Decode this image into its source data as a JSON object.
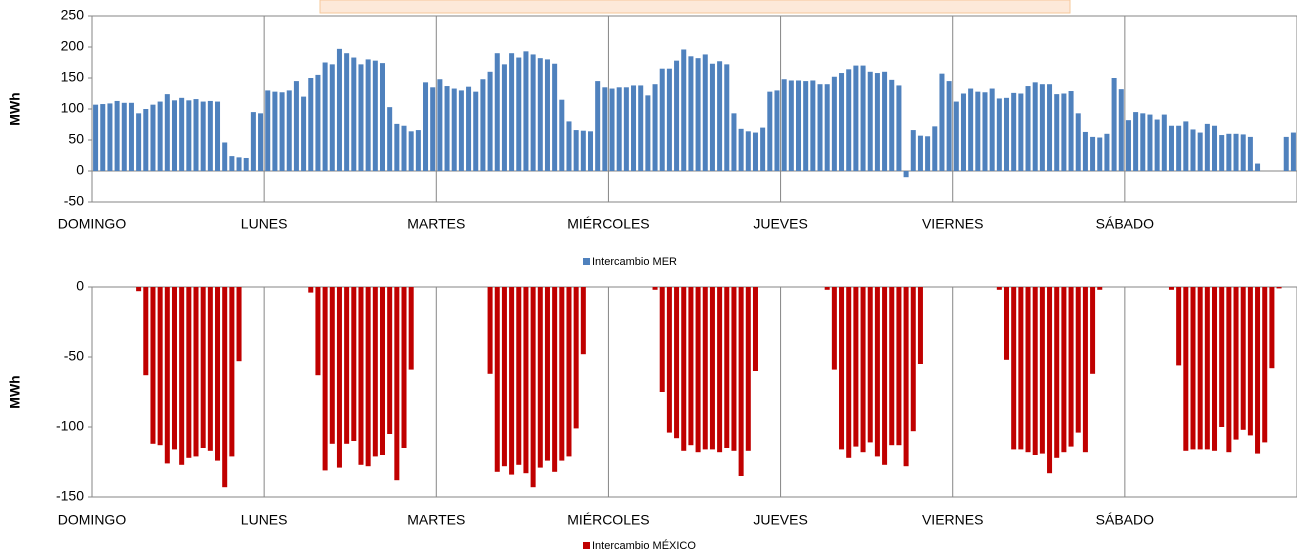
{
  "chart_data": [
    {
      "type": "bar",
      "ylabel": "MWh",
      "categories": [
        "DOMINGO",
        null,
        null,
        null,
        null,
        null,
        null,
        null,
        null,
        null,
        null,
        null,
        null,
        null,
        null,
        null,
        null,
        null,
        null,
        null,
        null,
        null,
        null,
        null,
        "LUNES",
        null,
        null,
        null,
        null,
        null,
        null,
        null,
        null,
        null,
        null,
        null,
        null,
        null,
        null,
        null,
        null,
        null,
        null,
        null,
        null,
        null,
        null,
        null,
        "MARTES",
        null,
        null,
        null,
        null,
        null,
        null,
        null,
        null,
        null,
        null,
        null,
        null,
        null,
        null,
        null,
        null,
        null,
        null,
        null,
        null,
        null,
        null,
        null,
        "MIÉRCOLES",
        null,
        null,
        null,
        null,
        null,
        null,
        null,
        null,
        null,
        null,
        null,
        null,
        null,
        null,
        null,
        null,
        null,
        null,
        null,
        null,
        null,
        null,
        null,
        "JUEVES",
        null,
        null,
        null,
        null,
        null,
        null,
        null,
        null,
        null,
        null,
        null,
        null,
        null,
        null,
        null,
        null,
        null,
        null,
        null,
        null,
        null,
        null,
        null,
        "VIERNES",
        null,
        null,
        null,
        null,
        null,
        null,
        null,
        null,
        null,
        null,
        null,
        null,
        null,
        null,
        null,
        null,
        null,
        null,
        null,
        null,
        null,
        null,
        null,
        "SÁBADO",
        null,
        null,
        null,
        null,
        null,
        null,
        null,
        null,
        null,
        null,
        null,
        null,
        null,
        null,
        null,
        null,
        null,
        null,
        null,
        null,
        null,
        null,
        null
      ],
      "series": [
        {
          "name": "Intercambio MER",
          "color": "#4f81bd",
          "values": [
            107,
            108,
            109,
            113,
            110,
            110,
            93,
            100,
            107,
            112,
            124,
            114,
            118,
            114,
            116,
            112,
            113,
            112,
            46,
            24,
            22,
            21,
            95,
            93,
            130,
            128,
            127,
            130,
            145,
            120,
            150,
            155,
            175,
            172,
            197,
            190,
            183,
            172,
            180,
            178,
            174,
            103,
            76,
            73,
            64,
            66,
            143,
            135,
            148,
            137,
            133,
            130,
            136,
            128,
            148,
            160,
            190,
            172,
            190,
            183,
            193,
            188,
            182,
            180,
            173,
            115,
            80,
            66,
            65,
            64,
            145,
            135,
            133,
            135,
            135,
            138,
            138,
            122,
            140,
            165,
            165,
            178,
            196,
            185,
            182,
            188,
            173,
            177,
            172,
            93,
            68,
            64,
            62,
            70,
            128,
            130,
            148,
            146,
            146,
            145,
            146,
            140,
            140,
            152,
            158,
            164,
            170,
            170,
            160,
            158,
            160,
            147,
            138,
            -10,
            66,
            57,
            56,
            72,
            157,
            145,
            112,
            125,
            133,
            128,
            127,
            133,
            117,
            118,
            126,
            125,
            137,
            143,
            140,
            140,
            124,
            125,
            129,
            93,
            63,
            55,
            54,
            60,
            150,
            132,
            82,
            95,
            93,
            91,
            83,
            91,
            73,
            73,
            80,
            67,
            62,
            76,
            73,
            58,
            60,
            60,
            59,
            55,
            12,
            0,
            0,
            0,
            55,
            62
          ]
        }
      ],
      "ylim": [
        -50,
        250
      ],
      "yticks": [
        -50,
        0,
        50,
        100,
        150,
        200,
        250
      ],
      "grid": true
    },
    {
      "type": "bar",
      "ylabel": "MWh",
      "categories": [
        "DOMINGO",
        null,
        null,
        null,
        null,
        null,
        null,
        null,
        null,
        null,
        null,
        null,
        null,
        null,
        null,
        null,
        null,
        null,
        null,
        null,
        null,
        null,
        null,
        null,
        "LUNES",
        null,
        null,
        null,
        null,
        null,
        null,
        null,
        null,
        null,
        null,
        null,
        null,
        null,
        null,
        null,
        null,
        null,
        null,
        null,
        null,
        null,
        null,
        null,
        "MARTES",
        null,
        null,
        null,
        null,
        null,
        null,
        null,
        null,
        null,
        null,
        null,
        null,
        null,
        null,
        null,
        null,
        null,
        null,
        null,
        null,
        null,
        null,
        null,
        "MIÉRCOLES",
        null,
        null,
        null,
        null,
        null,
        null,
        null,
        null,
        null,
        null,
        null,
        null,
        null,
        null,
        null,
        null,
        null,
        null,
        null,
        null,
        null,
        null,
        null,
        "JUEVES",
        null,
        null,
        null,
        null,
        null,
        null,
        null,
        null,
        null,
        null,
        null,
        null,
        null,
        null,
        null,
        null,
        null,
        null,
        null,
        null,
        null,
        null,
        null,
        "VIERNES",
        null,
        null,
        null,
        null,
        null,
        null,
        null,
        null,
        null,
        null,
        null,
        null,
        null,
        null,
        null,
        null,
        null,
        null,
        null,
        null,
        null,
        null,
        null,
        "SÁBADO",
        null,
        null,
        null,
        null,
        null,
        null,
        null,
        null,
        null,
        null,
        null,
        null,
        null,
        null,
        null,
        null,
        null,
        null,
        null,
        null,
        null,
        null,
        null
      ],
      "series": [
        {
          "name": "Intercambio MÉXICO",
          "color": "#c00000",
          "values": [
            0,
            0,
            0,
            0,
            0,
            0,
            -3,
            -63,
            -112,
            -113,
            -126,
            -116,
            -127,
            -122,
            -121,
            -115,
            -117,
            -124,
            -143,
            -121,
            -53,
            0,
            0,
            0,
            0,
            0,
            0,
            0,
            0,
            0,
            -4,
            -63,
            -131,
            -112,
            -129,
            -112,
            -110,
            -127,
            -128,
            -121,
            -120,
            -105,
            -138,
            -115,
            -59,
            0,
            0,
            0,
            0,
            0,
            0,
            0,
            0,
            0,
            0,
            -62,
            -132,
            -128,
            -134,
            -127,
            -133,
            -143,
            -129,
            -124,
            -132,
            -124,
            -121,
            -101,
            -48,
            0,
            0,
            0,
            0,
            0,
            0,
            0,
            0,
            0,
            -2,
            -75,
            -104,
            -108,
            -117,
            -113,
            -118,
            -116,
            -116,
            -118,
            -115,
            -117,
            -135,
            -117,
            -60,
            0,
            0,
            0,
            0,
            0,
            0,
            0,
            0,
            0,
            -2,
            -59,
            -116,
            -122,
            -114,
            -118,
            -111,
            -121,
            -127,
            -113,
            -113,
            -128,
            -103,
            -55,
            0,
            0,
            0,
            0,
            0,
            0,
            0,
            0,
            0,
            0,
            -2,
            -52,
            -116,
            -116,
            -118,
            -120,
            -119,
            -133,
            -122,
            -118,
            -114,
            -104,
            -118,
            -62,
            -2,
            0,
            0,
            0,
            0,
            0,
            0,
            0,
            0,
            0,
            -2,
            -56,
            -117,
            -116,
            -116,
            -116,
            -117,
            -100,
            -118,
            -109,
            -102,
            -106,
            -119,
            -111,
            -58,
            -1,
            0,
            0
          ]
        }
      ],
      "ylim": [
        -150,
        0
      ],
      "yticks": [
        -150,
        -100,
        -50,
        0
      ],
      "grid": true
    }
  ]
}
